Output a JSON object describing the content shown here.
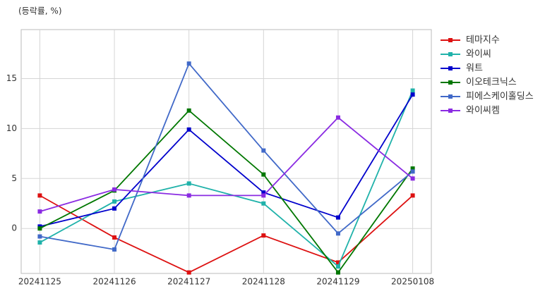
{
  "chart_data": {
    "type": "line",
    "ylabel": "(등락률, %)",
    "categories": [
      "20241125",
      "20241126",
      "20241127",
      "20241128",
      "20241129",
      "20250108"
    ],
    "series": [
      {
        "name": "테마지수",
        "color": "#dd1111",
        "values": [
          3.3,
          -0.9,
          -4.4,
          -0.7,
          -3.4,
          3.3
        ]
      },
      {
        "name": "와이씨",
        "color": "#20b2aa",
        "values": [
          -1.4,
          2.7,
          4.5,
          2.5,
          -3.8,
          13.8
        ]
      },
      {
        "name": "워트",
        "color": "#0000cc",
        "values": [
          0.2,
          2.0,
          9.9,
          3.6,
          1.1,
          13.4
        ]
      },
      {
        "name": "이오테크닉스",
        "color": "#007700",
        "values": [
          0.0,
          3.8,
          11.8,
          5.4,
          -4.4,
          6.0
        ]
      },
      {
        "name": "피에스케이홀딩스",
        "color": "#4169c8",
        "values": [
          -0.8,
          -2.1,
          16.5,
          7.8,
          -0.5,
          5.7
        ]
      },
      {
        "name": "와이씨켐",
        "color": "#8a2be2",
        "values": [
          1.7,
          3.9,
          3.3,
          3.3,
          11.1,
          5.0
        ]
      }
    ],
    "ylim": [
      -4.5,
      19.9
    ],
    "yticks": [
      0,
      5,
      10,
      15
    ],
    "grid": true,
    "legend": "outside-right"
  }
}
